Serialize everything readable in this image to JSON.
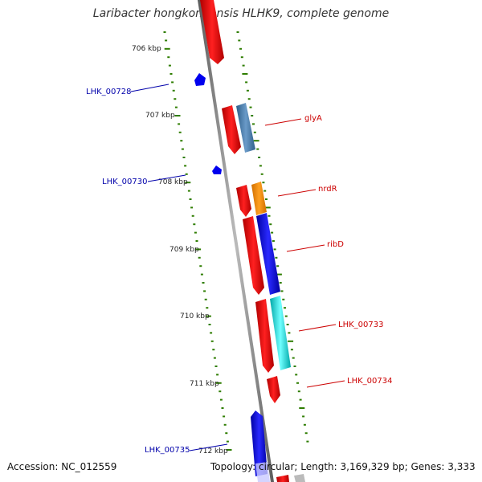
{
  "title": "Laribacter hongkongensis HLHK9, complete genome",
  "footer": {
    "accession": "Accession: NC_012559",
    "topology": "Topology: circular; Length: 3,169,329 bp; Genes: 3,333"
  },
  "ticks": [
    "706 kbp",
    "707 kbp",
    "708 kbp",
    "709 kbp",
    "710 kbp",
    "711 kbp",
    "712 kbp"
  ],
  "gene_labels_forward": [
    "glyA",
    "nrdR",
    "ribD",
    "LHK_00733",
    "LHK_00734"
  ],
  "gene_labels_reverse": [
    "LHK_00728",
    "LHK_00730",
    "LHK_00735"
  ],
  "colors": {
    "forward_label": "#cc0000",
    "reverse_label": "#0000aa",
    "cds": "#ee0000",
    "backbone": "#888888",
    "tick": "#2e7d00",
    "glyA_feature": "#4682b4",
    "nrdR_feature": "#ff8c00",
    "ribD_feature": "#0000ee",
    "LHK_00733_feature": "#00dddd",
    "reverse_cds": "#0000ee"
  }
}
